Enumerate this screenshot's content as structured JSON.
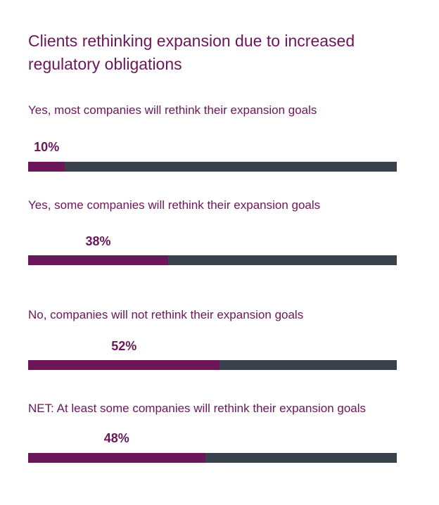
{
  "chart_data": {
    "type": "bar",
    "orientation": "horizontal",
    "title": "Clients rethinking expansion due to increased regulatory obligations",
    "categories": [
      "Yes, most companies will rethink their expansion goals",
      "Yes, some companies will rethink their expansion goals",
      "No, companies will not rethink their expansion goals",
      "NET: At least some companies will rethink their expansion goals"
    ],
    "values": [
      10,
      38,
      52,
      48
    ],
    "value_labels": [
      "10%",
      "38%",
      "52%",
      "48%"
    ],
    "xlim": [
      0,
      100
    ],
    "grid": false,
    "legend": "none",
    "colors": {
      "fill": "#6b1659",
      "track": "#39424a",
      "text": "#6b1659"
    }
  }
}
